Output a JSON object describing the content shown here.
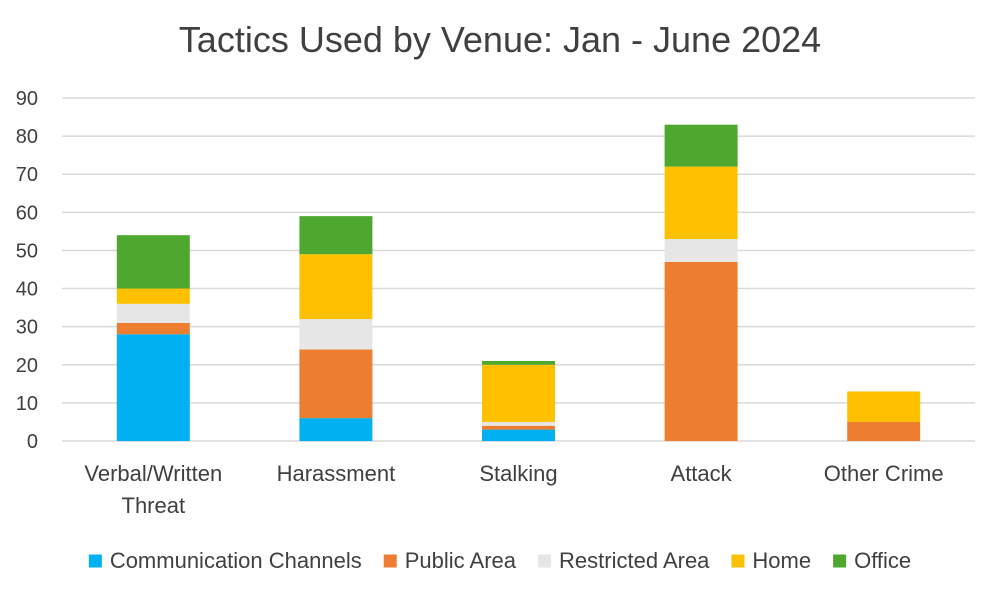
{
  "chart_data": {
    "type": "bar",
    "stacked": true,
    "title": "Tactics Used by Venue: Jan - June 2024",
    "xlabel": "",
    "ylabel": "",
    "ylim": [
      0,
      90
    ],
    "yticks": [
      "0",
      "10",
      "20",
      "30",
      "40",
      "50",
      "60",
      "70",
      "80",
      "90"
    ],
    "grid": true,
    "legend_position": "bottom",
    "categories": [
      [
        "Verbal/Written",
        "Threat"
      ],
      [
        "Harassment"
      ],
      [
        "Stalking"
      ],
      [
        "Attack"
      ],
      [
        "Other Crime"
      ]
    ],
    "series": [
      {
        "name": "Communication Channels",
        "color": "#00b0f0",
        "values": [
          28,
          6,
          3,
          0,
          0
        ]
      },
      {
        "name": "Public Area",
        "color": "#ed7d31",
        "values": [
          3,
          18,
          1,
          47,
          5
        ]
      },
      {
        "name": "Restricted Area",
        "color": "#e7e6e6",
        "values": [
          5,
          8,
          1,
          6,
          0
        ]
      },
      {
        "name": "Home",
        "color": "#ffc000",
        "values": [
          4,
          17,
          15,
          19,
          8
        ]
      },
      {
        "name": "Office",
        "color": "#4ea72e",
        "values": [
          14,
          10,
          1,
          11,
          0
        ]
      }
    ]
  }
}
